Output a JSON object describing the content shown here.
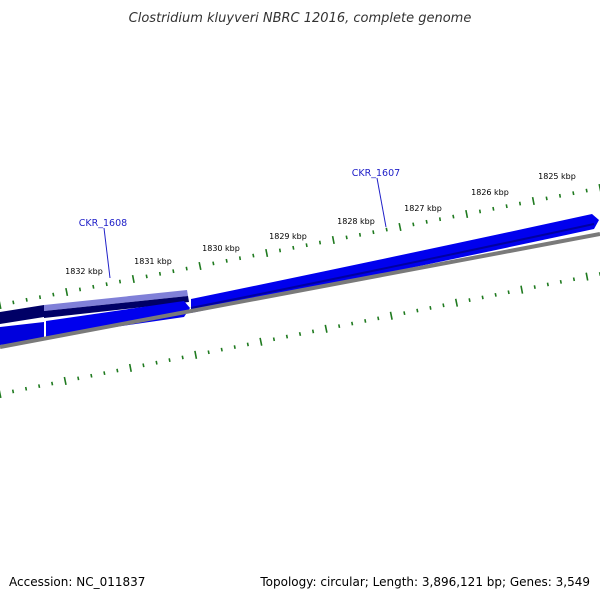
{
  "title": "Clostridium kluyveri NBRC 12016, complete genome",
  "footer": {
    "accession": "Accession: NC_011837",
    "summary": "Topology: circular; Length: 3,896,121 bp; Genes: 3,549"
  },
  "genes": [
    {
      "name": "CKR_1608",
      "color": "#1a1aa0"
    },
    {
      "name": "CKR_1607",
      "color": "#1a1aa0"
    }
  ],
  "scale_labels": [
    "1832 kbp",
    "1831 kbp",
    "1830 kbp",
    "1829 kbp",
    "1828 kbp",
    "1827 kbp",
    "1826 kbp",
    "1825 kbp"
  ],
  "colors": {
    "forward_feature": "#0000ee",
    "forward_feature_dark": "#0000a0",
    "selected_feature": "#000066",
    "selected_highlight": "#8080d8",
    "backbone": "#7a7a7a",
    "tick": "#1f7a1f",
    "gene_label": "#2020c8"
  }
}
